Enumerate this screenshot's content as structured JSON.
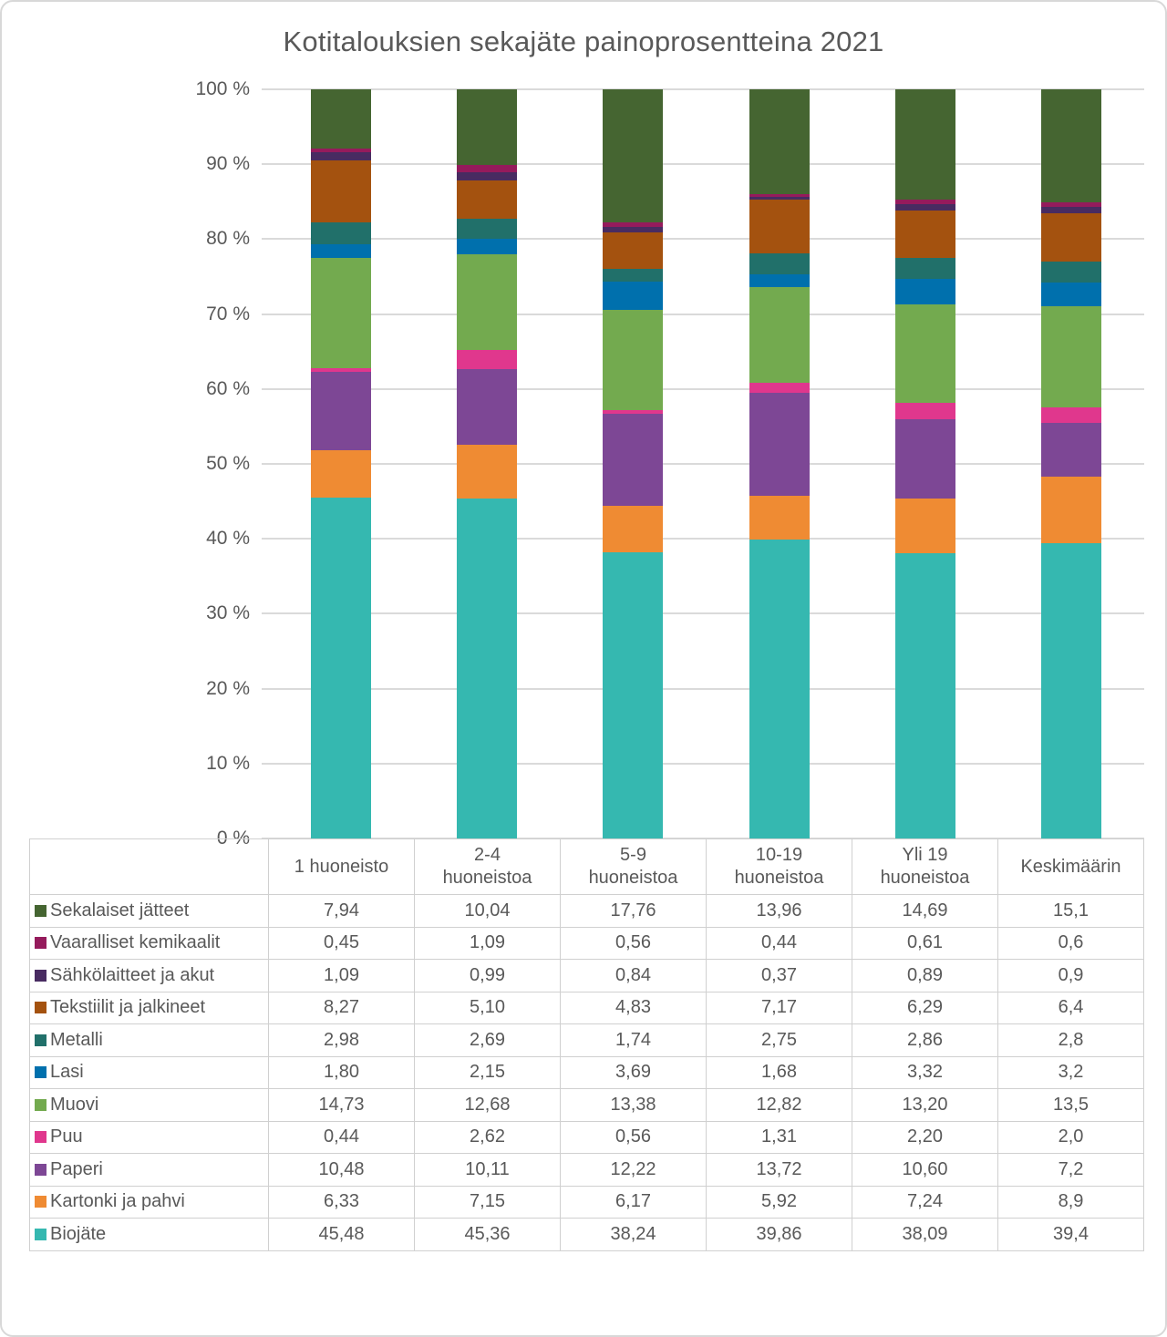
{
  "title": "Kotitalouksien sekajäte painoprosentteina 2021",
  "y_axis_ticks": [
    "100 %",
    "90 %",
    "80 %",
    "70 %",
    "60 %",
    "50 %",
    "40 %",
    "30 %",
    "20 %",
    "10 %",
    "0 %"
  ],
  "colors": {
    "text": "#595959",
    "gridline": "#dadada",
    "table_border": "#d0d0d0",
    "background": "#ffffff"
  },
  "chart_data": {
    "type": "bar",
    "variant": "stacked-100-percent",
    "title": "Kotitalouksien sekajäte painoprosentteina 2021",
    "xlabel": "",
    "ylabel": "",
    "ylim": [
      0,
      100
    ],
    "y_tick_step": 10,
    "y_tick_suffix": " %",
    "grid": true,
    "legend_position": "table-rows-left",
    "categories": [
      "1 huoneisto",
      "2-4 huoneistoa",
      "5-9 huoneistoa",
      "10-19 huoneistoa",
      "Yli 19 huoneistoa",
      "Keskimäärin"
    ],
    "stack_order_bottom_to_top": [
      "Biojäte",
      "Kartonki ja pahvi",
      "Paperi",
      "Puu",
      "Muovi",
      "Lasi",
      "Metalli",
      "Tekstiilit ja jalkineet",
      "Sähkölaitteet ja akut",
      "Vaaralliset kemikaalit",
      "Sekalaiset jätteet"
    ],
    "series": [
      {
        "name": "Sekalaiset jätteet",
        "color": "#456531",
        "values": [
          7.94,
          10.04,
          17.76,
          13.96,
          14.69,
          15.1
        ],
        "display": [
          "7,94",
          "10,04",
          "17,76",
          "13,96",
          "14,69",
          "15,1"
        ]
      },
      {
        "name": "Vaaralliset kemikaalit",
        "color": "#951b5c",
        "values": [
          0.45,
          1.09,
          0.56,
          0.44,
          0.61,
          0.6
        ],
        "display": [
          "0,45",
          "1,09",
          "0,56",
          "0,44",
          "0,61",
          "0,6"
        ]
      },
      {
        "name": "Sähkölaitteet ja akut",
        "color": "#482b61",
        "values": [
          1.09,
          0.99,
          0.84,
          0.37,
          0.89,
          0.9
        ],
        "display": [
          "1,09",
          "0,99",
          "0,84",
          "0,37",
          "0,89",
          "0,9"
        ]
      },
      {
        "name": "Tekstiilit ja jalkineet",
        "color": "#a4520f",
        "values": [
          8.27,
          5.1,
          4.83,
          7.17,
          6.29,
          6.4
        ],
        "display": [
          "8,27",
          "5,10",
          "4,83",
          "7,17",
          "6,29",
          "6,4"
        ]
      },
      {
        "name": "Metalli",
        "color": "#21706a",
        "values": [
          2.98,
          2.69,
          1.74,
          2.75,
          2.86,
          2.8
        ],
        "display": [
          "2,98",
          "2,69",
          "1,74",
          "2,75",
          "2,86",
          "2,8"
        ]
      },
      {
        "name": "Lasi",
        "color": "#0070ad",
        "values": [
          1.8,
          2.15,
          3.69,
          1.68,
          3.32,
          3.2
        ],
        "display": [
          "1,80",
          "2,15",
          "3,69",
          "1,68",
          "3,32",
          "3,2"
        ]
      },
      {
        "name": "Muovi",
        "color": "#73aa4f",
        "values": [
          14.73,
          12.68,
          13.38,
          12.82,
          13.2,
          13.5
        ],
        "display": [
          "14,73",
          "12,68",
          "13,38",
          "12,82",
          "13,20",
          "13,5"
        ]
      },
      {
        "name": "Puu",
        "color": "#e0378d",
        "values": [
          0.44,
          2.62,
          0.56,
          1.31,
          2.2,
          2.0
        ],
        "display": [
          "0,44",
          "2,62",
          "0,56",
          "1,31",
          "2,20",
          "2,0"
        ]
      },
      {
        "name": "Paperi",
        "color": "#7d4795",
        "values": [
          10.48,
          10.11,
          12.22,
          13.72,
          10.6,
          7.2
        ],
        "display": [
          "10,48",
          "10,11",
          "12,22",
          "13,72",
          "10,60",
          "7,2"
        ]
      },
      {
        "name": "Kartonki ja pahvi",
        "color": "#ef8b33",
        "values": [
          6.33,
          7.15,
          6.17,
          5.92,
          7.24,
          8.9
        ],
        "display": [
          "6,33",
          "7,15",
          "6,17",
          "5,92",
          "7,24",
          "8,9"
        ]
      },
      {
        "name": "Biojäte",
        "color": "#35b8b0",
        "values": [
          45.48,
          45.36,
          38.24,
          39.86,
          38.09,
          39.4
        ],
        "display": [
          "45,48",
          "45,36",
          "38,24",
          "39,86",
          "38,09",
          "39,4"
        ]
      }
    ]
  }
}
